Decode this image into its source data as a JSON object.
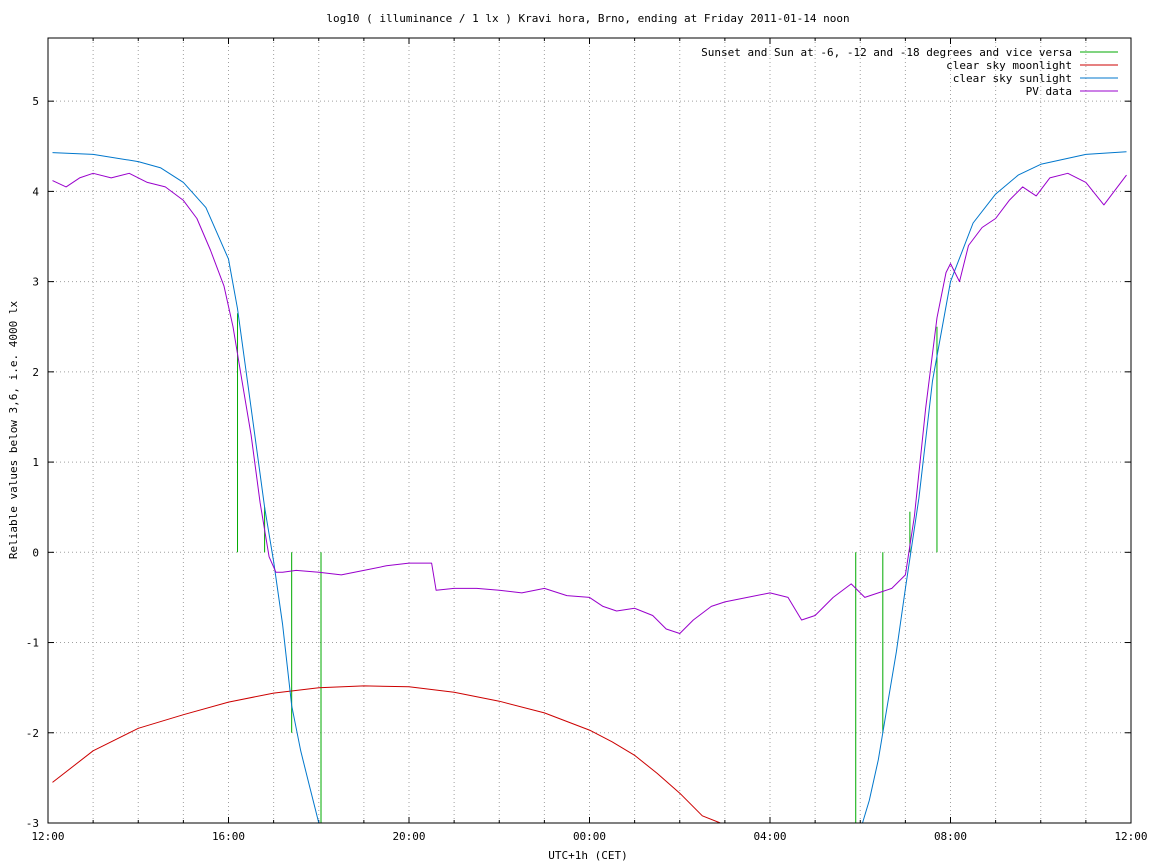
{
  "chart_data": {
    "type": "line",
    "title": "log10 ( illuminance / 1 lx ) Kravi hora, Brno, ending at Friday 2011-01-14 noon",
    "xlabel": "UTC+1h (CET)",
    "ylabel": "Reliable values below 3,6, i.e. 4000 lx",
    "xlim_hours": [
      12,
      36
    ],
    "ylim": [
      -3,
      5.7
    ],
    "x_ticks": [
      {
        "h": 12,
        "label": "12:00"
      },
      {
        "h": 16,
        "label": "16:00"
      },
      {
        "h": 20,
        "label": "20:00"
      },
      {
        "h": 24,
        "label": "00:00"
      },
      {
        "h": 28,
        "label": "04:00"
      },
      {
        "h": 32,
        "label": "08:00"
      },
      {
        "h": 36,
        "label": "12:00"
      }
    ],
    "y_ticks": [
      -3,
      -2,
      -1,
      0,
      1,
      2,
      3,
      4,
      5
    ],
    "grid": true,
    "legend_position": "top-right",
    "legend": [
      {
        "label": "Sunset and Sun at -6, -12 and -18 degrees and vice versa",
        "color": "#00aa00"
      },
      {
        "label": "clear sky moonlight",
        "color": "#cc0000"
      },
      {
        "label": "clear sky sunlight",
        "color": "#0077cc"
      },
      {
        "label": "PV data",
        "color": "#9900cc"
      }
    ],
    "series": [
      {
        "name": "Sunset and Sun at -6, -12 and -18 degrees and vice versa",
        "color": "#00aa00",
        "style": "vertical markers",
        "x": [
          16.2,
          16.8,
          17.4,
          18.05,
          29.9,
          30.5,
          31.1,
          31.7
        ],
        "y": [
          2.65,
          0.5,
          -2.0,
          -3.0,
          -3.0,
          -2.0,
          0.45,
          2.5
        ]
      },
      {
        "name": "clear sky moonlight",
        "color": "#cc0000",
        "x": [
          12.1,
          13,
          14,
          15,
          16,
          17,
          18,
          19,
          20,
          21,
          22,
          23,
          24,
          24.5,
          25,
          25.5,
          26,
          26.5,
          26.9
        ],
        "y": [
          -2.55,
          -2.2,
          -1.95,
          -1.8,
          -1.66,
          -1.56,
          -1.5,
          -1.48,
          -1.49,
          -1.55,
          -1.65,
          -1.78,
          -1.97,
          -2.1,
          -2.25,
          -2.45,
          -2.67,
          -2.92,
          -3.0
        ]
      },
      {
        "name": "clear sky sunlight",
        "color": "#0077cc",
        "x": [
          12.1,
          13,
          14,
          14.5,
          15,
          15.5,
          16,
          16.2,
          16.5,
          16.8,
          17,
          17.2,
          17.4,
          17.6,
          17.8,
          18.0,
          30.05,
          30.2,
          30.4,
          30.6,
          30.8,
          31.0,
          31.3,
          31.6,
          32.0,
          32.5,
          33,
          33.5,
          34,
          35,
          35.9
        ],
        "y": [
          4.43,
          4.41,
          4.33,
          4.26,
          4.1,
          3.82,
          3.25,
          2.7,
          1.6,
          0.5,
          -0.1,
          -0.8,
          -1.7,
          -2.2,
          -2.6,
          -3.0,
          -3.0,
          -2.75,
          -2.3,
          -1.7,
          -1.1,
          -0.4,
          0.6,
          1.9,
          3.0,
          3.65,
          3.97,
          4.18,
          4.3,
          4.41,
          4.44
        ]
      },
      {
        "name": "PV data",
        "color": "#9900cc",
        "x": [
          12.1,
          12.4,
          12.7,
          13.0,
          13.4,
          13.8,
          14.2,
          14.6,
          15.0,
          15.3,
          15.6,
          15.9,
          16.1,
          16.3,
          16.5,
          16.7,
          16.9,
          17.05,
          17.2,
          17.5,
          18.0,
          18.5,
          19.0,
          19.5,
          20.0,
          20.5,
          20.6,
          21.0,
          21.5,
          22.0,
          22.5,
          23.0,
          23.5,
          24.0,
          24.3,
          24.6,
          25.0,
          25.4,
          25.7,
          26.0,
          26.3,
          26.7,
          27.0,
          27.5,
          28.0,
          28.4,
          28.7,
          29.0,
          29.4,
          29.8,
          30.1,
          30.4,
          30.7,
          31.0,
          31.2,
          31.45,
          31.7,
          31.9,
          32.0,
          32.2,
          32.4,
          32.7,
          33.0,
          33.3,
          33.6,
          33.9,
          34.2,
          34.6,
          35.0,
          35.4,
          35.7,
          35.9
        ],
        "y": [
          4.12,
          4.05,
          4.15,
          4.2,
          4.15,
          4.2,
          4.1,
          4.05,
          3.9,
          3.7,
          3.35,
          2.95,
          2.5,
          1.9,
          1.3,
          0.55,
          -0.05,
          -0.22,
          -0.22,
          -0.2,
          -0.22,
          -0.25,
          -0.2,
          -0.15,
          -0.12,
          -0.12,
          -0.42,
          -0.4,
          -0.4,
          -0.42,
          -0.45,
          -0.4,
          -0.48,
          -0.5,
          -0.6,
          -0.65,
          -0.62,
          -0.7,
          -0.85,
          -0.9,
          -0.75,
          -0.6,
          -0.55,
          -0.5,
          -0.45,
          -0.5,
          -0.75,
          -0.7,
          -0.5,
          -0.35,
          -0.5,
          -0.45,
          -0.4,
          -0.25,
          0.4,
          1.6,
          2.6,
          3.1,
          3.2,
          3.0,
          3.4,
          3.6,
          3.7,
          3.9,
          4.05,
          3.95,
          4.15,
          4.2,
          4.1,
          3.85,
          4.05,
          4.18
        ]
      }
    ]
  }
}
